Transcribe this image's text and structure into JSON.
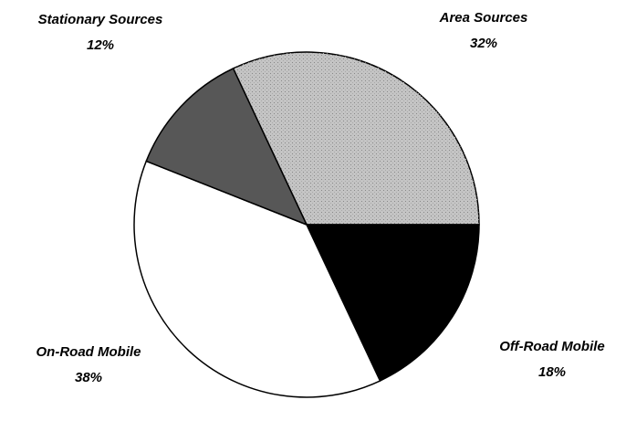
{
  "chart_data": {
    "type": "pie",
    "categories": [
      "Area Sources",
      "Off-Road Mobile",
      "On-Road Mobile",
      "Stationary Sources"
    ],
    "values": [
      32,
      18,
      38,
      12
    ],
    "value_labels": [
      "32%",
      "18%",
      "38%",
      "12%"
    ],
    "colors": [
      "#c4c4c4",
      "#000000",
      "#ffffff",
      "#575757"
    ]
  }
}
